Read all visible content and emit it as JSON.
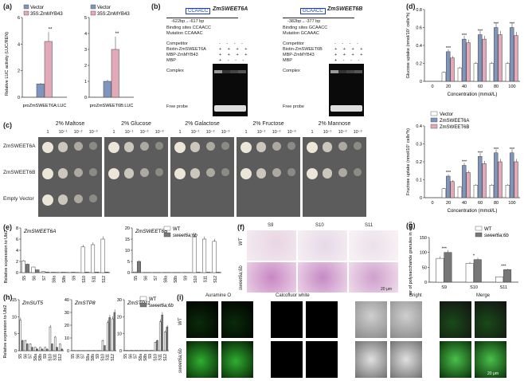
{
  "labels": {
    "a": "(a)",
    "b": "(b)",
    "c": "(c)",
    "d": "(d)",
    "e": "(e)",
    "f": "(f)",
    "g": "(g)",
    "h": "(h)",
    "i": "(i)"
  },
  "panel_a": {
    "ylabel": "Relative LUC activity (LUC/REN)",
    "legend": [
      "Vector",
      "35S:ZmMYB43"
    ],
    "colors": [
      "#7f95bd",
      "#e3a9b8"
    ],
    "charts": [
      {
        "xlabel": "proZmSWEET6A:LUC",
        "values": [
          1.0,
          4.2
        ],
        "err": [
          0.08,
          0.7
        ],
        "sig": "**",
        "ylim": [
          0,
          6
        ],
        "ticks": [
          0,
          2,
          4,
          6
        ]
      },
      {
        "xlabel": "proZmSWEET6B:LUC",
        "values": [
          1.0,
          3.0
        ],
        "err": [
          0.1,
          0.8
        ],
        "sig": "**",
        "ylim": [
          0,
          5
        ],
        "ticks": [
          0,
          1,
          2,
          3,
          4,
          5
        ]
      }
    ]
  },
  "panel_b": {
    "left": {
      "gene": "ZmSWEET6A",
      "motif": "CCAACC",
      "range": "-622bp→-617 bp",
      "binding": "Binding sites CCAACC",
      "mutation": "Mutation     CCAAAC",
      "probe": "Biotin-ZmSWEET6A"
    },
    "right": {
      "gene": "ZmSWEET6B",
      "motif": "GCAACC",
      "range": "-382bp→-377 bp",
      "binding": "Binding sites GCAACC",
      "mutation": "Mutation     GCAAAC",
      "probe": "Biotin-ZmSWEET6B"
    },
    "rows": [
      "Competitor",
      "MBP-ZmMYB43",
      "MBP"
    ],
    "competitor_labels": [
      "100×",
      "1000×",
      "1000×"
    ],
    "complex": "Complex",
    "free_probe": "Free probe"
  },
  "panel_c": {
    "media": [
      "2% Maltose",
      "2% Glucose",
      "2% Galactose",
      "2% Fructose",
      "2% Mannose"
    ],
    "dilutions": [
      "1",
      "10⁻¹",
      "10⁻²",
      "10⁻³"
    ],
    "strains": [
      "ZmSWEET6A",
      "ZmSWEET6B",
      "Empty Vector"
    ]
  },
  "panel_d": {
    "legend": [
      "Vector",
      "ZmSWEET6A",
      "ZmSWEET6B"
    ],
    "colors": [
      "#ffffff",
      "#7f95bd",
      "#e3a9b8"
    ],
    "xlabel": "Concentration (mmol/L)",
    "categories": [
      "0",
      "20",
      "40",
      "60",
      "80",
      "100"
    ],
    "charts": [
      {
        "ylabel": "Glucose uptake (nmol/10⁷ cells*h)",
        "ylim": [
          0,
          0.8
        ],
        "ticks": [
          "0",
          "0.2",
          "0.4",
          "0.6",
          "0.8"
        ],
        "series": [
          [
            0,
            0.1,
            0.15,
            0.2,
            0.2,
            0.2
          ],
          [
            0,
            0.33,
            0.47,
            0.52,
            0.6,
            0.6
          ],
          [
            0,
            0.26,
            0.43,
            0.47,
            0.52,
            0.51
          ]
        ]
      },
      {
        "ylabel": "Fructose uptake (nmol/10⁷ cells*h)",
        "ylim": [
          0,
          0.4
        ],
        "ticks": [
          "0",
          "0.1",
          "0.2",
          "0.3",
          "0.4"
        ],
        "series": [
          [
            0,
            0.05,
            0.06,
            0.07,
            0.07,
            0.07
          ],
          [
            0,
            0.12,
            0.18,
            0.23,
            0.25,
            0.25
          ],
          [
            0,
            0.09,
            0.14,
            0.19,
            0.2,
            0.2
          ]
        ]
      }
    ],
    "sig": "***"
  },
  "panel_e": {
    "ylabel": "Relative expression to Ubi2",
    "legend": [
      "WT",
      "sweet6a;6b"
    ],
    "stages": [
      "S5",
      "S6",
      "S7",
      "S8a",
      "S8b",
      "S9",
      "S10",
      "S11",
      "S12"
    ],
    "charts": [
      {
        "title": "ZmSWEET6A",
        "ylim": [
          0,
          8
        ],
        "ticks": [
          "0",
          "2",
          "4",
          "6",
          "8"
        ],
        "wt": [
          2.1,
          1.0,
          0.2,
          0.1,
          0.1,
          0.1,
          4.6,
          5.0,
          6.0
        ],
        "mut": [
          1.5,
          0.5,
          0.1,
          0.05,
          0.05,
          0.05,
          0.1,
          0.1,
          0.1
        ]
      },
      {
        "title": "ZmSWEET6B",
        "ylim": [
          0,
          20
        ],
        "ticks": [
          "0",
          "5",
          "10",
          "15",
          "20"
        ],
        "wt": [
          0.3,
          0.1,
          0.1,
          0.1,
          0.1,
          0.1,
          16,
          15,
          14
        ],
        "mut": [
          5.0,
          0.1,
          0.1,
          0.1,
          0.1,
          0.1,
          0.2,
          0.2,
          0.2
        ]
      }
    ]
  },
  "panel_f": {
    "cols": [
      "S9",
      "S10",
      "S11"
    ],
    "rows": [
      "WT",
      "sweet6a;6b"
    ],
    "scale": "20 μm"
  },
  "panel_g": {
    "legend": [
      "WT",
      "sweet6a;6b"
    ],
    "ylabel": "The number of polysaccharide granules in endothecium",
    "categories": [
      "S9",
      "S10",
      "S11"
    ],
    "wt": [
      80,
      63,
      18
    ],
    "mut": [
      100,
      76,
      42
    ],
    "ylim": [
      0,
      150
    ],
    "ticks": [
      "0",
      "50",
      "100",
      "150"
    ],
    "sig": [
      "***",
      "*",
      "***"
    ]
  },
  "panel_h": {
    "ylabel": "Relative expression to Ubi2",
    "legend": [
      "WT",
      "sweet6a;6b"
    ],
    "stages": [
      "S5",
      "S6",
      "S7",
      "S8a",
      "S8b",
      "S9",
      "S10",
      "S11",
      "S12"
    ],
    "charts": [
      {
        "title": "ZmSUT5",
        "ylim": [
          0,
          15
        ],
        "ticks": [
          "0",
          "5",
          "10",
          "15"
        ],
        "wt": [
          9,
          3,
          2,
          1,
          1,
          1,
          7,
          4,
          2
        ],
        "mut": [
          3,
          2,
          1,
          0.5,
          0.5,
          0.5,
          2,
          1,
          0.5
        ]
      },
      {
        "title": "ZmSTP8",
        "ylim": [
          0,
          40
        ],
        "ticks": [
          "0",
          "10",
          "20",
          "30",
          "40"
        ],
        "wt": [
          0.2,
          0.2,
          0.2,
          0.2,
          0.2,
          0.2,
          8,
          22,
          25
        ],
        "mut": [
          0.2,
          0.2,
          0.2,
          0.2,
          0.2,
          0.2,
          4,
          26,
          30
        ]
      },
      {
        "title": "ZmSTP11",
        "ylim": [
          0,
          30
        ],
        "ticks": [
          "0",
          "10",
          "20",
          "30"
        ],
        "wt": [
          0.2,
          0.2,
          0.2,
          0.2,
          0.2,
          0.2,
          5,
          17,
          11
        ],
        "mut": [
          0.2,
          0.2,
          0.2,
          0.2,
          0.2,
          0.2,
          6,
          21,
          14
        ]
      }
    ]
  },
  "panel_i": {
    "cols": [
      "Auramine O",
      "Calcofluor white",
      "Bright",
      "Merge"
    ],
    "rows": [
      "WT",
      "sweet6a;6b"
    ],
    "scale": "20 μm"
  }
}
